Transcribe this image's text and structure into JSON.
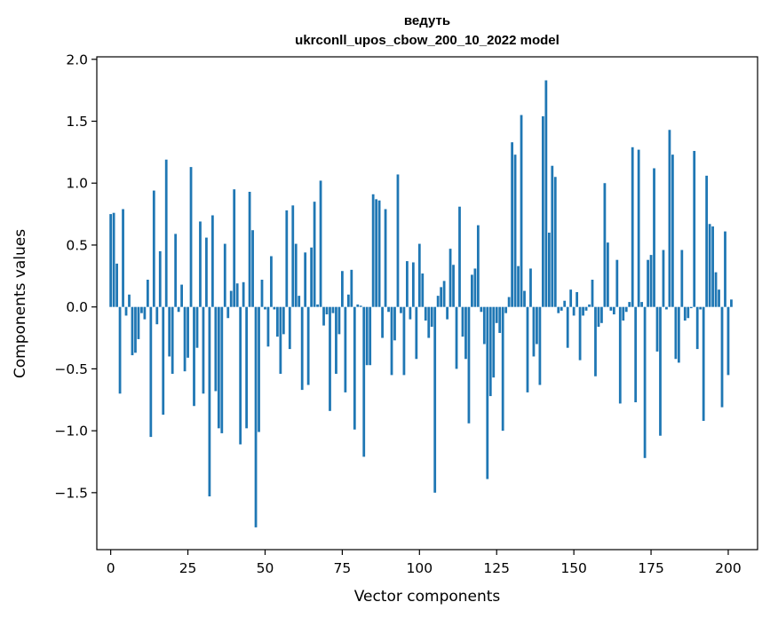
{
  "chart_data": {
    "type": "bar",
    "title": "ведуть",
    "subtitle": "ukrconll_upos_cbow_200_10_2022 model",
    "xlabel": "Vector components",
    "ylabel": "Components values",
    "xlim": [
      -4.5,
      209.5
    ],
    "ylim": [
      -1.96,
      2.02
    ],
    "xticks": [
      0,
      25,
      50,
      75,
      100,
      125,
      150,
      175,
      200
    ],
    "yticks": [
      -1.5,
      -1.0,
      -0.5,
      0.0,
      0.5,
      1.0,
      1.5,
      2.0
    ],
    "ytick_labels": [
      "−1.5",
      "−1.0",
      "−0.5",
      "0.0",
      "0.5",
      "1.0",
      "1.5",
      "2.0"
    ],
    "bar_color": "#1f77b4",
    "values": [
      0.75,
      0.76,
      0.35,
      -0.7,
      0.79,
      -0.07,
      0.1,
      -0.39,
      -0.37,
      -0.26,
      -0.05,
      -0.1,
      0.22,
      -1.05,
      0.94,
      -0.14,
      0.45,
      -0.87,
      1.19,
      -0.4,
      -0.54,
      0.59,
      -0.04,
      0.18,
      -0.52,
      -0.41,
      1.13,
      -0.8,
      -0.33,
      0.69,
      -0.7,
      0.56,
      -1.53,
      0.74,
      -0.68,
      -0.98,
      -1.02,
      0.51,
      -0.09,
      0.13,
      0.95,
      0.19,
      -1.11,
      0.2,
      -0.98,
      0.93,
      0.62,
      -1.78,
      -1.01,
      0.22,
      -0.02,
      -0.32,
      0.41,
      -0.02,
      -0.24,
      -0.54,
      -0.22,
      0.78,
      -0.34,
      0.82,
      0.51,
      0.09,
      -0.67,
      0.44,
      -0.63,
      0.48,
      0.85,
      0.02,
      1.02,
      -0.15,
      -0.06,
      -0.84,
      -0.05,
      -0.54,
      -0.22,
      0.29,
      -0.69,
      0.1,
      0.3,
      -0.99,
      0.02,
      0.01,
      -1.21,
      -0.47,
      -0.47,
      0.91,
      0.87,
      0.86,
      -0.25,
      0.79,
      -0.04,
      -0.55,
      -0.27,
      1.07,
      -0.05,
      -0.55,
      0.37,
      -0.1,
      0.36,
      -0.42,
      0.51,
      0.27,
      -0.11,
      -0.25,
      -0.16,
      -1.5,
      0.09,
      0.16,
      0.21,
      -0.1,
      0.47,
      0.34,
      -0.5,
      0.81,
      -0.24,
      -0.42,
      -0.94,
      0.26,
      0.31,
      0.66,
      -0.04,
      -0.3,
      -1.39,
      -0.72,
      -0.57,
      -0.13,
      -0.21,
      -1.0,
      -0.05,
      0.08,
      1.33,
      1.23,
      0.33,
      1.55,
      0.13,
      -0.69,
      0.31,
      -0.4,
      -0.3,
      -0.63,
      1.54,
      1.83,
      0.6,
      1.14,
      1.05,
      -0.05,
      -0.03,
      0.05,
      -0.33,
      0.14,
      -0.07,
      0.12,
      -0.43,
      -0.07,
      -0.03,
      0.02,
      0.22,
      -0.56,
      -0.16,
      -0.13,
      1.0,
      0.52,
      -0.03,
      -0.06,
      0.38,
      -0.78,
      -0.11,
      -0.04,
      0.04,
      1.29,
      -0.77,
      1.27,
      0.04,
      -1.22,
      0.38,
      0.42,
      1.12,
      -0.36,
      -1.04,
      0.46,
      -0.02,
      1.43,
      1.23,
      -0.42,
      -0.45,
      0.46,
      -0.11,
      -0.09,
      -0.01,
      1.26,
      -0.34,
      -0.02,
      -0.92,
      1.06,
      0.67,
      0.65,
      0.28,
      0.14,
      -0.81,
      0.61,
      -0.55,
      0.06
    ]
  }
}
